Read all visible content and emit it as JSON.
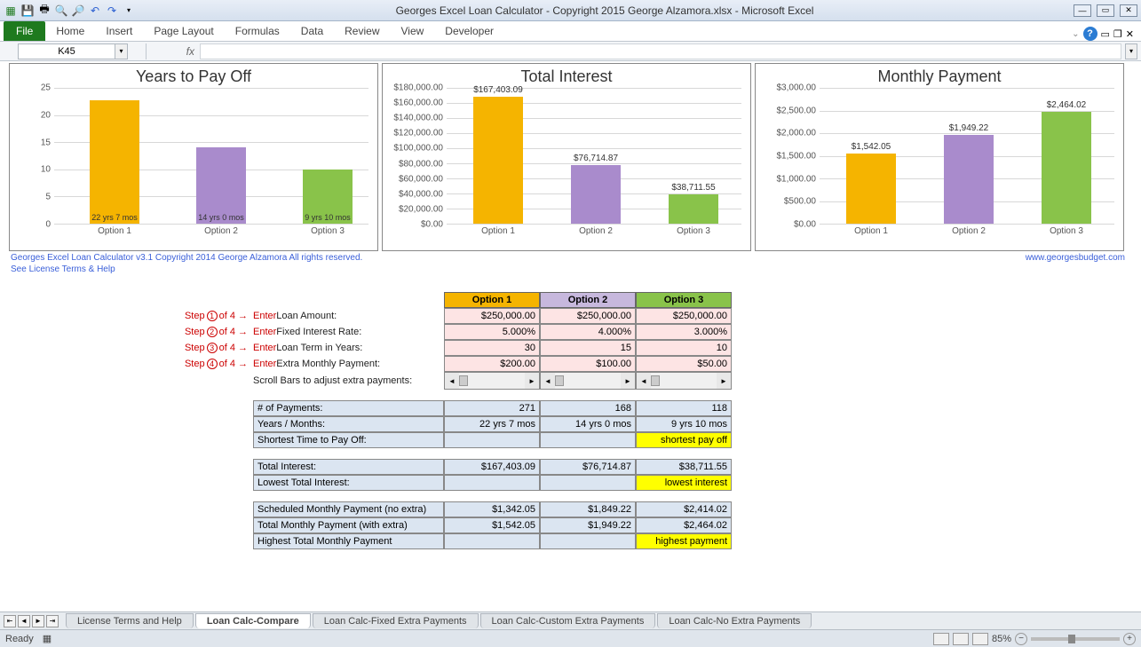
{
  "window": {
    "title": "Georges Excel Loan Calculator - Copyright 2015 George Alzamora.xlsx  -  Microsoft Excel"
  },
  "ribbon": {
    "file": "File",
    "tabs": [
      "Home",
      "Insert",
      "Page Layout",
      "Formulas",
      "Data",
      "Review",
      "View",
      "Developer"
    ]
  },
  "namebox": {
    "value": "K45"
  },
  "copyright": {
    "line1": "Georges Excel Loan Calculator v3.1    Copyright 2014  George Alzamora  All rights reserved.",
    "line2": "See License Terms & Help",
    "url": "www.georgesbudget.com"
  },
  "charts": {
    "years": {
      "title": "Years to Pay Off",
      "ymax": 25,
      "ytick_step": 5,
      "yticks": [
        "25",
        "20",
        "15",
        "10",
        "5",
        "0"
      ],
      "categories": [
        "Option 1",
        "Option 2",
        "Option 3"
      ],
      "values": [
        22.58,
        14.0,
        9.83
      ],
      "inside_labels": [
        "22 yrs 7 mos",
        "14 yrs 0 mos",
        "9 yrs 10 mos"
      ],
      "colors": [
        "#f5b400",
        "#a98bcc",
        "#89c34a"
      ]
    },
    "interest": {
      "title": "Total Interest",
      "ymax": 180000,
      "ytick_step": 20000,
      "yticks": [
        "$180,000.00",
        "$160,000.00",
        "$140,000.00",
        "$120,000.00",
        "$100,000.00",
        "$80,000.00",
        "$60,000.00",
        "$40,000.00",
        "$20,000.00",
        "$0.00"
      ],
      "categories": [
        "Option 1",
        "Option 2",
        "Option 3"
      ],
      "values": [
        167403.09,
        76714.87,
        38711.55
      ],
      "labels": [
        "$167,403.09",
        "$76,714.87",
        "$38,711.55"
      ],
      "colors": [
        "#f5b400",
        "#a98bcc",
        "#89c34a"
      ]
    },
    "payment": {
      "title": "Monthly Payment",
      "ymax": 3000,
      "ytick_step": 500,
      "yticks": [
        "$3,000.00",
        "$2,500.00",
        "$2,000.00",
        "$1,500.00",
        "$1,000.00",
        "$500.00",
        "$0.00"
      ],
      "categories": [
        "Option 1",
        "Option 2",
        "Option 3"
      ],
      "values": [
        1542.05,
        1949.22,
        2464.02
      ],
      "labels": [
        "$1,542.05",
        "$1,949.22",
        "$2,464.02"
      ],
      "colors": [
        "#f5b400",
        "#a98bcc",
        "#89c34a"
      ]
    }
  },
  "steps": {
    "s1": {
      "prefix": "Step",
      "n": "1",
      "suffix": "of 4 →",
      "label": "Enter Loan Amount:"
    },
    "s2": {
      "prefix": "Step",
      "n": "2",
      "suffix": "of 4 →",
      "label": "Enter Fixed Interest Rate:"
    },
    "s3": {
      "prefix": "Step",
      "n": "3",
      "suffix": "of 4 →",
      "label": "Enter Loan Term in Years:"
    },
    "s4": {
      "prefix": "Step",
      "n": "4",
      "suffix": "of 4 →",
      "label": "Enter Extra Monthly Payment:"
    },
    "scroll": "Scroll Bars to adjust extra payments:"
  },
  "options": {
    "headers": [
      "Option 1",
      "Option 2",
      "Option 3"
    ],
    "header_colors": [
      "#f5b400",
      "#c7b8dd",
      "#89c34a"
    ],
    "loan_amount": [
      "$250,000.00",
      "$250,000.00",
      "$250,000.00"
    ],
    "rate": [
      "5.000%",
      "4.000%",
      "3.000%"
    ],
    "term": [
      "30",
      "15",
      "10"
    ],
    "extra": [
      "$200.00",
      "$100.00",
      "$50.00"
    ]
  },
  "results": {
    "num_payments": {
      "label": "# of Payments:",
      "vals": [
        "271",
        "168",
        "118"
      ]
    },
    "years_months": {
      "label": "Years / Months:",
      "vals": [
        "22 yrs 7 mos",
        "14 yrs 0 mos",
        "9 yrs 10 mos"
      ]
    },
    "shortest": {
      "label": "Shortest Time to Pay Off:",
      "badge": "shortest pay off"
    },
    "total_interest": {
      "label": "Total Interest:",
      "vals": [
        "$167,403.09",
        "$76,714.87",
        "$38,711.55"
      ]
    },
    "lowest_interest": {
      "label": "Lowest Total Interest:",
      "badge": "lowest interest"
    },
    "sched_payment": {
      "label": "Scheduled Monthly Payment (no extra)",
      "vals": [
        "$1,342.05",
        "$1,849.22",
        "$2,414.02"
      ]
    },
    "total_payment": {
      "label": "Total Monthly Payment (with extra)",
      "vals": [
        "$1,542.05",
        "$1,949.22",
        "$2,464.02"
      ]
    },
    "highest_payment": {
      "label": "Highest Total Monthly Payment",
      "badge": "highest payment"
    }
  },
  "sheets": {
    "tabs": [
      "License Terms and Help",
      "Loan Calc-Compare",
      "Loan Calc-Fixed Extra Payments",
      "Loan Calc-Custom Extra Payments",
      "Loan Calc-No Extra Payments"
    ],
    "active": 1
  },
  "statusbar": {
    "ready": "Ready",
    "zoom": "85%"
  }
}
